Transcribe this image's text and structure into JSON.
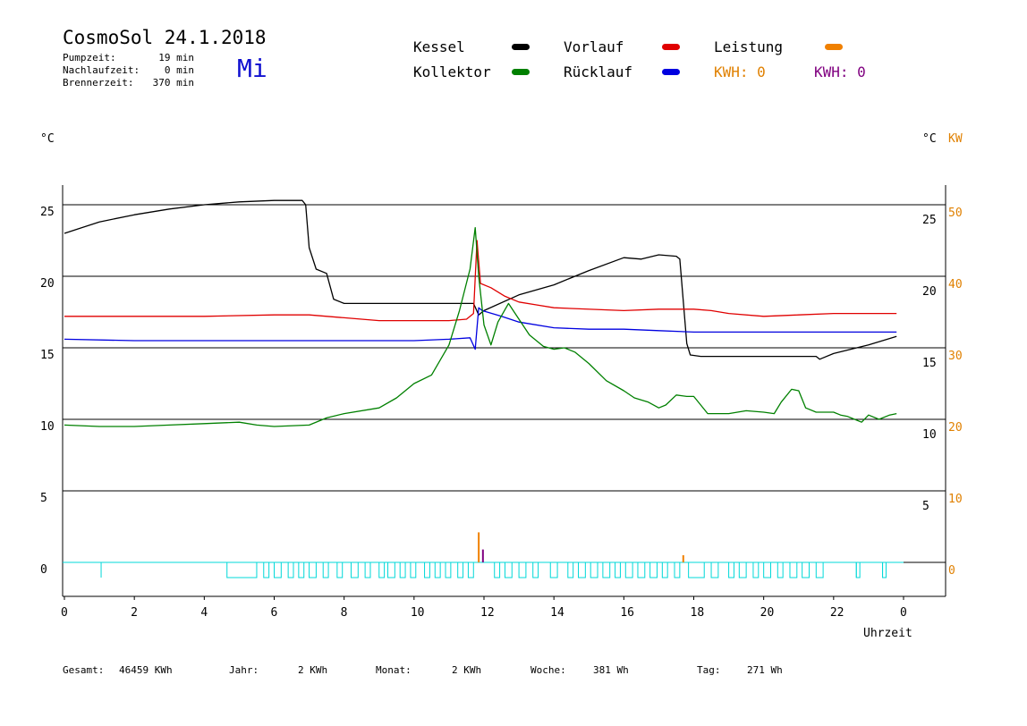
{
  "header": {
    "title": "CosmoSol 24.1.2018",
    "day": "Mi",
    "stats": [
      {
        "label": "Pumpzeit:",
        "value": "19 min"
      },
      {
        "label": "Nachlaufzeit:",
        "value": "0 min"
      },
      {
        "label": "Brennerzeit:",
        "value": "370 min"
      }
    ]
  },
  "legend": {
    "kessel": {
      "label": "Kessel",
      "color": "#000000"
    },
    "vorlauf": {
      "label": "Vorlauf",
      "color": "#e00000"
    },
    "leistung": {
      "label": "Leistung",
      "color": "#f08000"
    },
    "kollektor": {
      "label": "Kollektor",
      "color": "#008000"
    },
    "ruecklauf": {
      "label": "Rücklauf",
      "color": "#0000e0"
    },
    "kwh1": {
      "label": "KWH: 0",
      "color": "#e08000"
    },
    "kwh2": {
      "label": "KWH: 0",
      "color": "#800080"
    }
  },
  "axis_units": {
    "left": "°C",
    "right_c": "°C",
    "right_kw": "KW",
    "x": "Uhrzeit"
  },
  "footer": [
    {
      "label": "Gesamt:",
      "value": "46459 KWh"
    },
    {
      "label": "Jahr:",
      "value": "2 KWh"
    },
    {
      "label": "Monat:",
      "value": "2 KWh"
    },
    {
      "label": "Woche:",
      "value": "381 Wh"
    },
    {
      "label": "Tag:",
      "value": "271 Wh"
    }
  ],
  "chart_data": {
    "type": "line",
    "x_ticks": [
      "0",
      "2",
      "4",
      "6",
      "8",
      "10",
      "12",
      "14",
      "16",
      "18",
      "20",
      "22",
      "0"
    ],
    "xlim": [
      0,
      24
    ],
    "ylim": [
      -3,
      26
    ],
    "left_ticks": [
      "25",
      "20",
      "15",
      "10",
      "5",
      "0"
    ],
    "right_c_ticks": [
      "25",
      "20",
      "15",
      "10",
      "5"
    ],
    "right_kw_ticks": [
      "50",
      "40",
      "30",
      "20",
      "10",
      "0"
    ],
    "grid_lines_y": [
      25,
      20,
      15,
      10,
      5,
      0
    ],
    "series": [
      {
        "name": "Kessel",
        "color": "#000000",
        "x": [
          0,
          1,
          2,
          3,
          4,
          5,
          6,
          6.8,
          6.9,
          7.0,
          7.2,
          7.5,
          7.7,
          8,
          9,
          10,
          11,
          11.7,
          11.85,
          12,
          13,
          14,
          15,
          16,
          16.5,
          17,
          17.5,
          17.6,
          17.8,
          17.9,
          18.2,
          19,
          20,
          21,
          21.5,
          21.6,
          22,
          23,
          23.8
        ],
        "y": [
          23.0,
          23.8,
          24.3,
          24.7,
          25.0,
          25.2,
          25.3,
          25.3,
          25.0,
          22.0,
          20.5,
          20.2,
          18.4,
          18.1,
          18.1,
          18.1,
          18.1,
          18.1,
          17.3,
          17.6,
          18.7,
          19.4,
          20.4,
          21.3,
          21.2,
          21.5,
          21.4,
          21.2,
          15.3,
          14.5,
          14.4,
          14.4,
          14.4,
          14.4,
          14.4,
          14.2,
          14.6,
          15.2,
          15.8
        ]
      },
      {
        "name": "Vorlauf",
        "color": "#e00000",
        "x": [
          0,
          2,
          4,
          6,
          7,
          8,
          9,
          10,
          11,
          11.5,
          11.7,
          11.8,
          11.9,
          12.2,
          12.6,
          13,
          13.5,
          14,
          16,
          17,
          18,
          18.5,
          19,
          20,
          21,
          22,
          23,
          23.8
        ],
        "y": [
          17.2,
          17.2,
          17.2,
          17.3,
          17.3,
          17.1,
          16.9,
          16.9,
          16.9,
          17.0,
          17.4,
          22.5,
          19.5,
          19.2,
          18.6,
          18.2,
          18.0,
          17.8,
          17.6,
          17.7,
          17.7,
          17.6,
          17.4,
          17.2,
          17.3,
          17.4,
          17.4,
          17.4
        ]
      },
      {
        "name": "Rücklauf",
        "color": "#0000e0",
        "x": [
          0,
          2,
          4,
          6,
          8,
          10,
          11,
          11.6,
          11.75,
          11.85,
          11.95,
          12.5,
          13,
          14,
          15,
          16,
          17,
          18,
          19,
          20,
          21,
          22,
          23,
          23.8
        ],
        "y": [
          15.6,
          15.5,
          15.5,
          15.5,
          15.5,
          15.5,
          15.6,
          15.7,
          14.9,
          17.8,
          17.6,
          17.2,
          16.8,
          16.4,
          16.3,
          16.3,
          16.2,
          16.1,
          16.1,
          16.1,
          16.1,
          16.1,
          16.1,
          16.1
        ]
      },
      {
        "name": "Kollektor",
        "color": "#008000",
        "x": [
          0,
          1,
          2,
          3,
          4,
          5,
          5.5,
          6,
          7,
          7.5,
          8,
          9,
          9.5,
          10,
          10.5,
          11,
          11.3,
          11.6,
          11.75,
          11.85,
          12,
          12.2,
          12.4,
          12.7,
          13,
          13.3,
          13.7,
          14,
          14.3,
          14.6,
          15,
          15.5,
          16,
          16.3,
          16.7,
          17,
          17.2,
          17.5,
          17.8,
          18,
          18.4,
          19,
          19.5,
          20,
          20.3,
          20.5,
          20.8,
          21,
          21.2,
          21.5,
          22,
          22.2,
          22.4,
          22.6,
          22.8,
          23,
          23.3,
          23.6,
          23.8
        ],
        "y": [
          9.6,
          9.5,
          9.5,
          9.6,
          9.7,
          9.8,
          9.6,
          9.5,
          9.6,
          10.1,
          10.4,
          10.8,
          11.5,
          12.5,
          13.1,
          15.2,
          17.6,
          20.5,
          23.4,
          20.0,
          16.6,
          15.2,
          16.8,
          18.1,
          17.0,
          15.9,
          15.1,
          14.9,
          15.0,
          14.7,
          13.9,
          12.7,
          12.0,
          11.5,
          11.2,
          10.8,
          11.0,
          11.7,
          11.6,
          11.6,
          10.4,
          10.4,
          10.6,
          10.5,
          10.4,
          11.2,
          12.1,
          12.0,
          10.8,
          10.5,
          10.5,
          10.3,
          10.2,
          10.0,
          9.8,
          10.3,
          10.0,
          10.3,
          10.4
        ]
      }
    ],
    "leistung_spikes": [
      {
        "x": 11.85,
        "y": 2.1,
        "color": "#f08000"
      },
      {
        "x": 17.7,
        "y": 0.5,
        "color": "#f08000"
      },
      {
        "x": 11.97,
        "y": 0.9,
        "color": "#800080"
      }
    ],
    "pump_pulses": [
      [
        4.65,
        5.5
      ],
      [
        5.7,
        5.85
      ],
      [
        6.0,
        6.2
      ],
      [
        6.4,
        6.55
      ],
      [
        6.7,
        6.85
      ],
      [
        7.0,
        7.2
      ],
      [
        7.4,
        7.55
      ],
      [
        7.8,
        7.95
      ],
      [
        8.2,
        8.4
      ],
      [
        8.6,
        8.75
      ],
      [
        9.0,
        9.15
      ],
      [
        9.25,
        9.45
      ],
      [
        9.6,
        9.75
      ],
      [
        9.9,
        10.05
      ],
      [
        10.3,
        10.45
      ],
      [
        10.6,
        10.75
      ],
      [
        10.9,
        11.05
      ],
      [
        11.25,
        11.4
      ],
      [
        11.55,
        11.7
      ],
      [
        12.3,
        12.45
      ],
      [
        12.6,
        12.8
      ],
      [
        13.0,
        13.2
      ],
      [
        13.4,
        13.55
      ],
      [
        13.9,
        14.1
      ],
      [
        14.4,
        14.55
      ],
      [
        14.7,
        14.9
      ],
      [
        15.05,
        15.25
      ],
      [
        15.4,
        15.6
      ],
      [
        15.75,
        15.9
      ],
      [
        16.05,
        16.25
      ],
      [
        16.4,
        16.6
      ],
      [
        16.75,
        16.95
      ],
      [
        17.1,
        17.25
      ],
      [
        17.45,
        17.6
      ],
      [
        17.85,
        18.3
      ],
      [
        18.5,
        18.7
      ],
      [
        19.0,
        19.15
      ],
      [
        19.3,
        19.5
      ],
      [
        19.7,
        19.85
      ],
      [
        20.0,
        20.2
      ],
      [
        20.4,
        20.55
      ],
      [
        20.75,
        20.95
      ],
      [
        21.1,
        21.3
      ],
      [
        21.5,
        21.7
      ],
      [
        22.65,
        22.75
      ],
      [
        23.4,
        23.5
      ]
    ],
    "pump_color": "#00d8d8",
    "pump_tick_x": [
      1.05,
      22.65,
      23.4
    ]
  }
}
